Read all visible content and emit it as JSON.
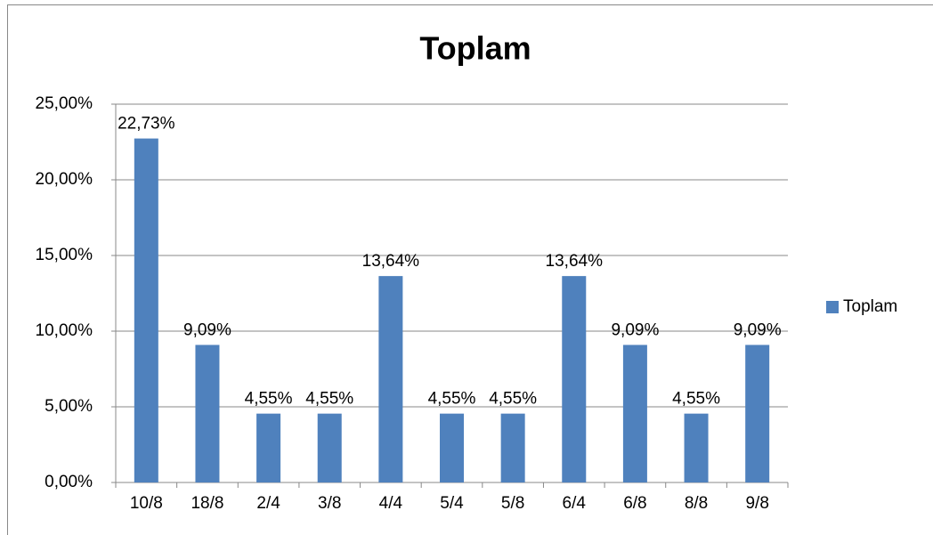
{
  "chart_data": {
    "type": "bar",
    "title": "Toplam",
    "categories": [
      "10/8",
      "18/8",
      "2/4",
      "3/8",
      "4/4",
      "5/4",
      "5/8",
      "6/4",
      "6/8",
      "8/8",
      "9/8"
    ],
    "series": [
      {
        "name": "Toplam",
        "color": "#4f81bd",
        "values": [
          22.73,
          9.09,
          4.55,
          4.55,
          13.64,
          4.55,
          4.55,
          13.64,
          9.09,
          4.55,
          9.09
        ],
        "value_labels": [
          "22,73%",
          "9,09%",
          "4,55%",
          "4,55%",
          "13,64%",
          "4,55%",
          "4,55%",
          "13,64%",
          "9,09%",
          "4,55%",
          "9,09%"
        ]
      }
    ],
    "ylim": [
      0,
      25
    ],
    "yticks": [
      {
        "value": 0,
        "label": "0,00%"
      },
      {
        "value": 5,
        "label": "5,00%"
      },
      {
        "value": 10,
        "label": "10,00%"
      },
      {
        "value": 15,
        "label": "15,00%"
      },
      {
        "value": 20,
        "label": "20,00%"
      },
      {
        "value": 25,
        "label": "25,00%"
      }
    ],
    "grid": true,
    "legend": "right"
  }
}
